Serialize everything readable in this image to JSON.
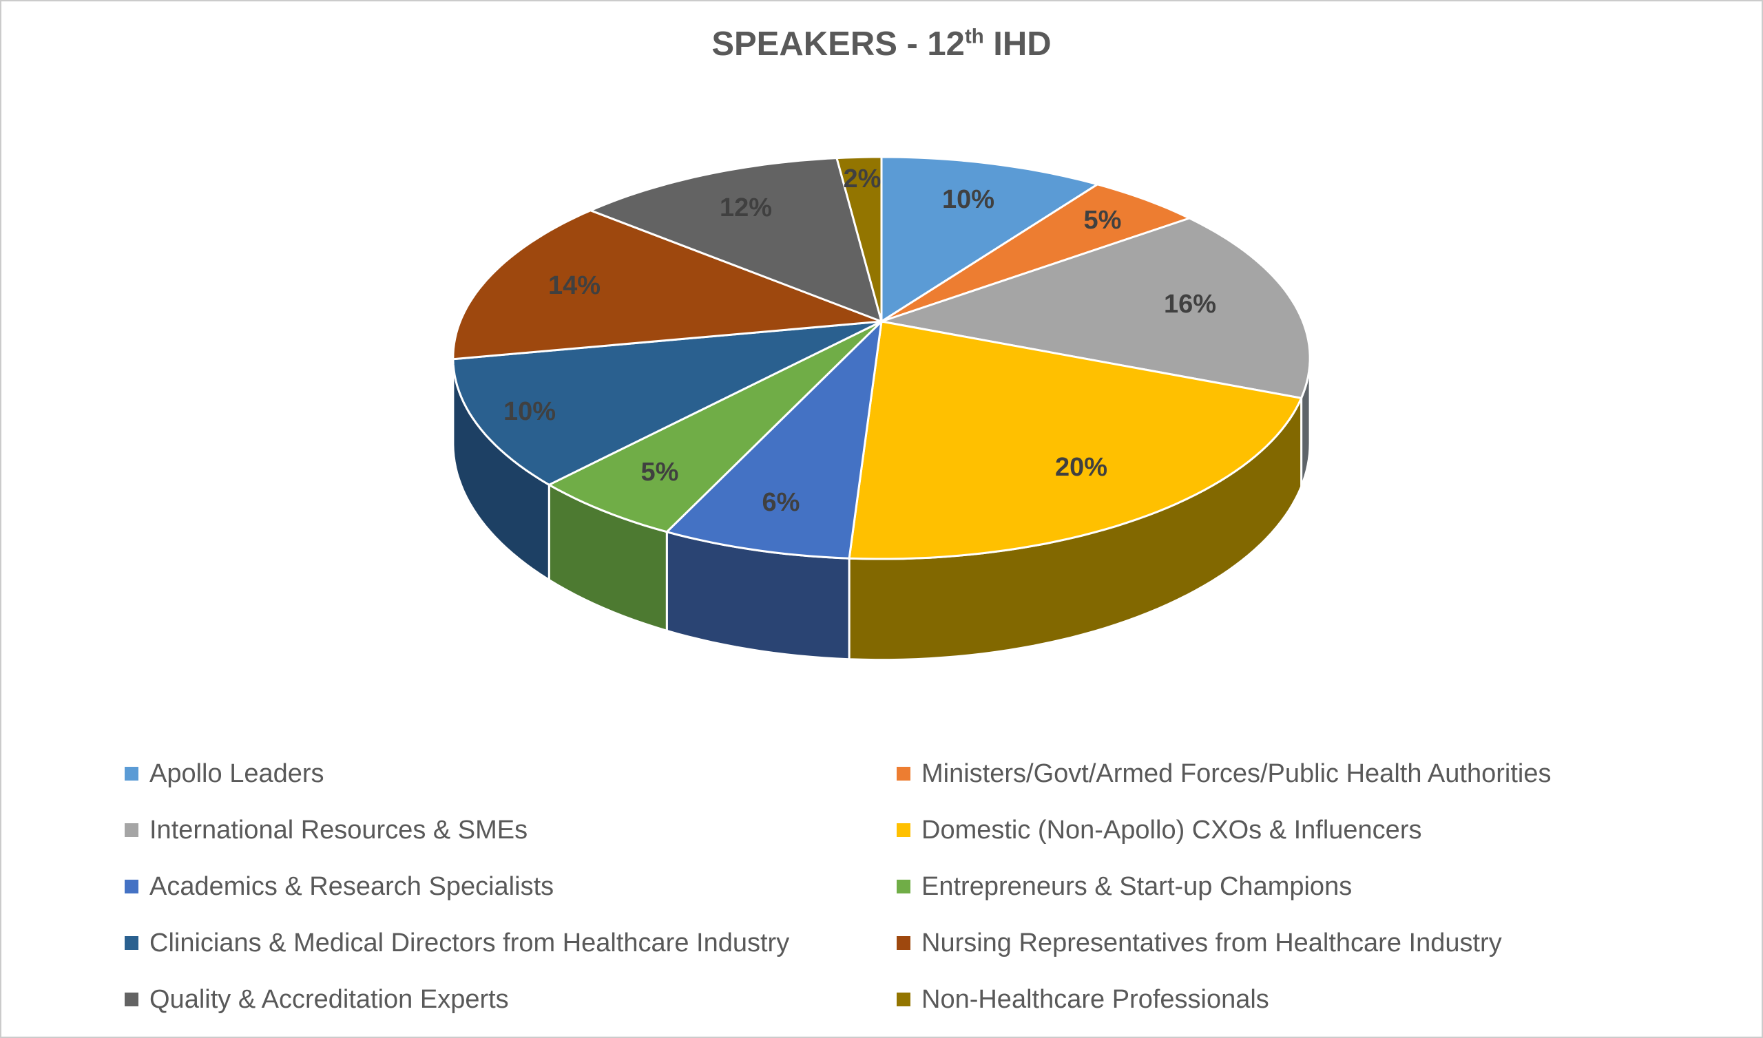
{
  "title": {
    "prefix": "SPEAKERS - 12",
    "superscript": "th",
    "suffix": " IHD",
    "full_text": "SPEAKERS - 12th IHD"
  },
  "chart_data": {
    "type": "pie",
    "title": "SPEAKERS - 12th IHD",
    "style": "3d-pie",
    "label_suffix": "%",
    "legend_position": "bottom",
    "legend_columns": 2,
    "start_angle_deg": 0,
    "direction": "clockwise",
    "slices": [
      {
        "label": "Apollo Leaders",
        "value": 10,
        "color": "#5B9BD5",
        "side_color": "#3e6f9c"
      },
      {
        "label": "Ministers/Govt/Armed Forces/Public Health Authorities",
        "value": 5,
        "color": "#ED7D31",
        "side_color": "#b05a1f"
      },
      {
        "label": "International Resources & SMEs",
        "value": 16,
        "color": "#A5A5A5",
        "side_color": "#5e6469"
      },
      {
        "label": "Domestic (Non-Apollo) CXOs & Influencers",
        "value": 20,
        "color": "#FFC000",
        "side_color": "#826800"
      },
      {
        "label": "Academics & Research Specialists",
        "value": 6,
        "color": "#4472C4",
        "side_color": "#2a4473"
      },
      {
        "label": "Entrepreneurs & Start-up Champions",
        "value": 5,
        "color": "#70AD47",
        "side_color": "#4d7a31"
      },
      {
        "label": "Clinicians & Medical Directors from Healthcare Industry",
        "value": 10,
        "color": "#2A608F",
        "side_color": "#1d4064"
      },
      {
        "label": "Nursing Representatives from Healthcare Industry",
        "value": 14,
        "color": "#9E480E",
        "side_color": "#70330a"
      },
      {
        "label": "Quality & Accreditation Experts",
        "value": 12,
        "color": "#636363",
        "side_color": "#454545"
      },
      {
        "label": "Non-Healthcare Professionals",
        "value": 2,
        "color": "#937500",
        "side_color": "#6b5500"
      }
    ]
  },
  "colors": {
    "title_text": "#595959",
    "legend_text": "#595959",
    "percent_label_text": "#404040",
    "background": "#ffffff",
    "border": "#cbcbcb",
    "slice_separator": "#ffffff"
  }
}
